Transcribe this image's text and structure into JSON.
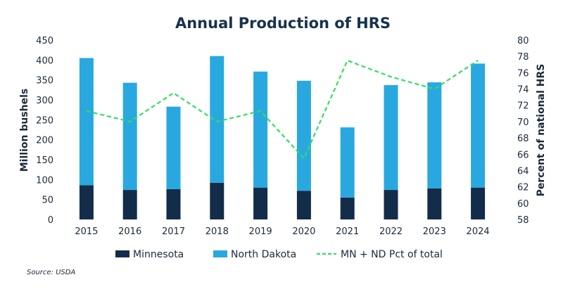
{
  "chart_data": {
    "type": "bar",
    "stacked": true,
    "title": "Annual Production of HRS",
    "categories": [
      "2015",
      "2016",
      "2017",
      "2018",
      "2019",
      "2020",
      "2021",
      "2022",
      "2023",
      "2024"
    ],
    "series": [
      {
        "name": "Minnesota",
        "color": "#122c4a",
        "axis": "left",
        "values": [
          86,
          74,
          76,
          92,
          80,
          72,
          55,
          74,
          78,
          80
        ]
      },
      {
        "name": "North Dakota",
        "color": "#29a8e0",
        "axis": "left",
        "values": [
          319,
          269,
          207,
          318,
          291,
          276,
          176,
          263,
          266,
          311
        ]
      }
    ],
    "line_series": {
      "name": "MN + ND Pct of total",
      "color": "#2ee05f",
      "style": "dashed",
      "axis": "right",
      "values": [
        71.3,
        70.0,
        73.5,
        70.0,
        71.3,
        65.5,
        77.5,
        75.5,
        74.0,
        77.5
      ]
    },
    "ylabel": "Million bushels",
    "ylim": [
      0,
      450
    ],
    "yticks": [
      "0",
      "50",
      "100",
      "150",
      "200",
      "250",
      "300",
      "350",
      "400",
      "450"
    ],
    "y2label": "Percent of national HRS",
    "y2lim": [
      58,
      80
    ],
    "y2ticks": [
      "58",
      "60",
      "62",
      "64",
      "66",
      "68",
      "70",
      "72",
      "74",
      "76",
      "78",
      "80"
    ],
    "grid": false,
    "legend": "bottom",
    "source": "Source: USDA"
  }
}
